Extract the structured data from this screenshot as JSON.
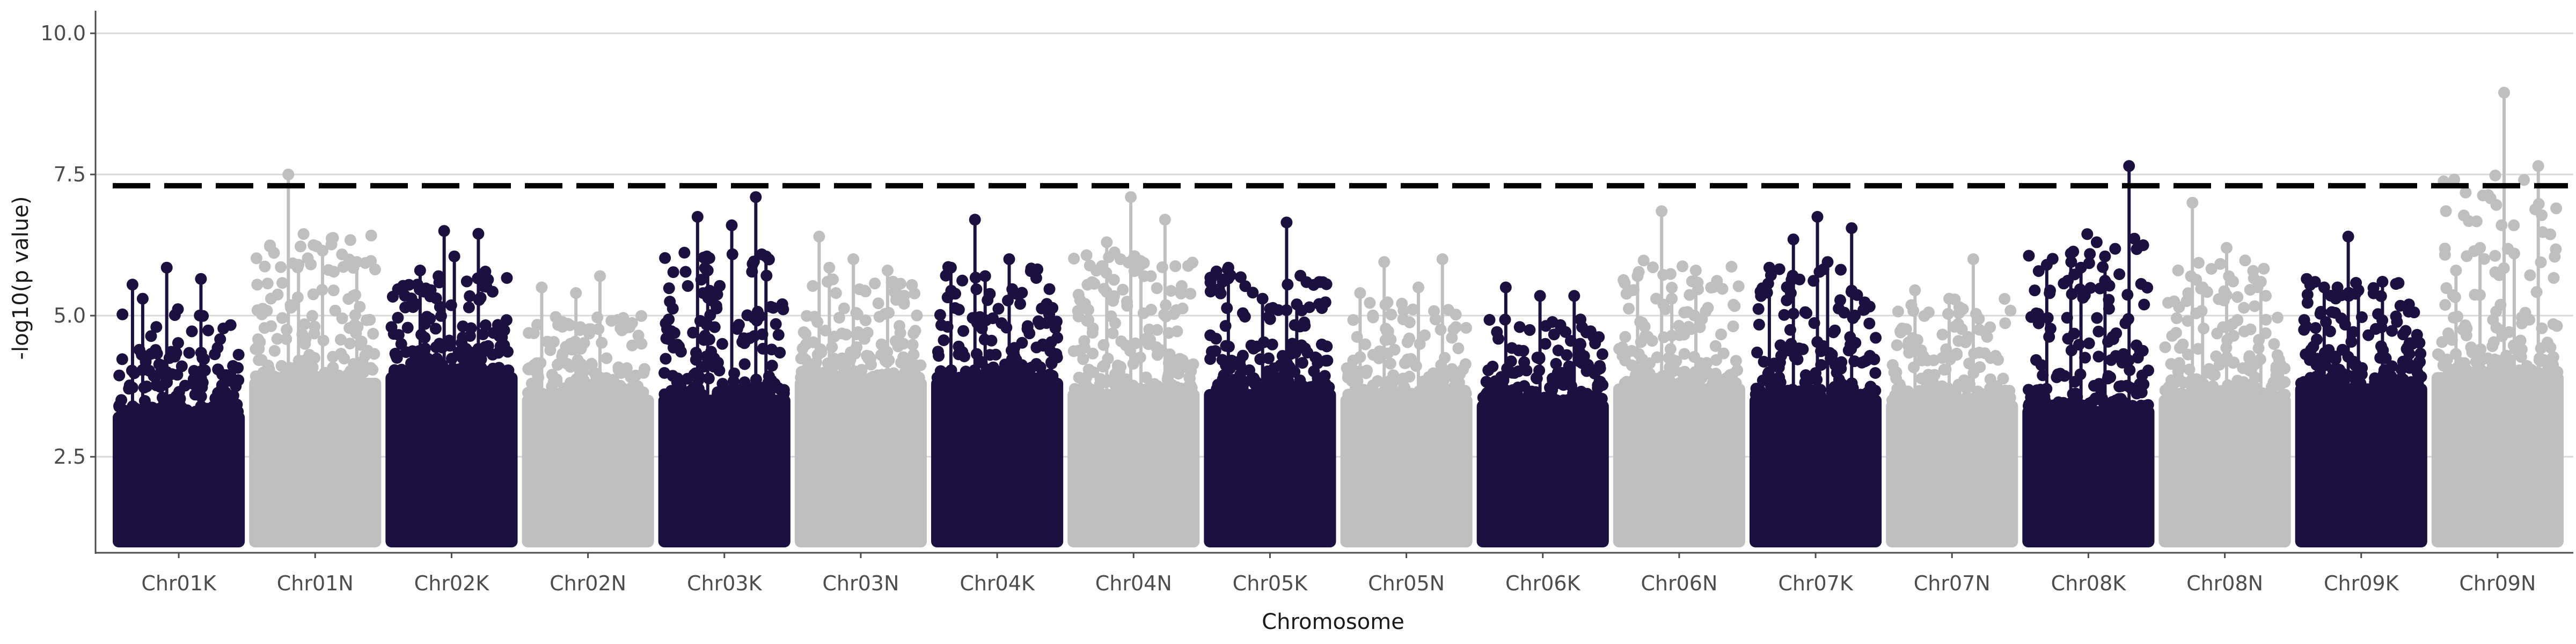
{
  "chart_data": {
    "type": "scatter",
    "subtype": "manhattan",
    "title": "",
    "xlabel": "Chromosome",
    "ylabel": "-log10(p value)",
    "ylim": [
      0.8,
      10.4
    ],
    "yticks": [
      2.5,
      5.0,
      7.5,
      10.0
    ],
    "ytick_labels": [
      "2.5",
      "5.0",
      "7.5",
      "10.0"
    ],
    "grid": "horizontal major lines only",
    "legend": "none",
    "threshold": {
      "value": 7.3,
      "style": "dashed"
    },
    "colors": {
      "dark": "#1c1040",
      "light": "#bfbfbf",
      "grid": "#d9d9d9",
      "threshold": "#000000"
    },
    "categories": [
      "Chr01K",
      "Chr01N",
      "Chr02K",
      "Chr02N",
      "Chr03K",
      "Chr03N",
      "Chr04K",
      "Chr04N",
      "Chr05K",
      "Chr05N",
      "Chr06K",
      "Chr06N",
      "Chr07K",
      "Chr07N",
      "Chr08K",
      "Chr08N",
      "Chr09K",
      "Chr09N"
    ],
    "chromosomes": [
      {
        "name": "Chr01K",
        "color": "dark",
        "band_top": 3.3,
        "max": 5.85,
        "notable": [
          5.55,
          5.85,
          5.65,
          5.3
        ]
      },
      {
        "name": "Chr01N",
        "color": "light",
        "band_top": 3.9,
        "max": 7.5,
        "notable": [
          7.5,
          6.15,
          5.95,
          5.9
        ]
      },
      {
        "name": "Chr02K",
        "color": "dark",
        "band_top": 4.0,
        "max": 6.5,
        "notable": [
          6.5,
          6.45,
          5.8,
          6.05
        ]
      },
      {
        "name": "Chr02N",
        "color": "light",
        "band_top": 3.6,
        "max": 5.7,
        "notable": [
          5.7,
          5.5,
          5.4
        ]
      },
      {
        "name": "Chr03K",
        "color": "dark",
        "band_top": 3.6,
        "max": 7.1,
        "notable": [
          7.1,
          6.75,
          6.6,
          6.05,
          5.8
        ]
      },
      {
        "name": "Chr03N",
        "color": "light",
        "band_top": 3.9,
        "max": 6.4,
        "notable": [
          6.4,
          6.0,
          5.8,
          5.85
        ]
      },
      {
        "name": "Chr04K",
        "color": "dark",
        "band_top": 3.9,
        "max": 6.7,
        "notable": [
          6.7,
          6.0,
          5.85,
          5.7
        ]
      },
      {
        "name": "Chr04N",
        "color": "light",
        "band_top": 3.7,
        "max": 7.1,
        "notable": [
          7.1,
          6.7,
          6.3,
          5.9
        ]
      },
      {
        "name": "Chr05K",
        "color": "dark",
        "band_top": 3.7,
        "max": 6.65,
        "notable": [
          6.65,
          5.85,
          5.3,
          5.2
        ]
      },
      {
        "name": "Chr05N",
        "color": "light",
        "band_top": 3.6,
        "max": 6.0,
        "notable": [
          6.0,
          5.95,
          5.5,
          5.4
        ]
      },
      {
        "name": "Chr06K",
        "color": "dark",
        "band_top": 3.5,
        "max": 5.5,
        "notable": [
          5.5,
          5.35,
          5.35
        ]
      },
      {
        "name": "Chr06N",
        "color": "light",
        "band_top": 3.8,
        "max": 6.85,
        "notable": [
          6.85,
          5.8,
          5.7,
          5.3
        ]
      },
      {
        "name": "Chr07K",
        "color": "dark",
        "band_top": 3.6,
        "max": 6.75,
        "notable": [
          6.75,
          6.55,
          6.35,
          5.95,
          5.85
        ]
      },
      {
        "name": "Chr07N",
        "color": "light",
        "band_top": 3.5,
        "max": 6.0,
        "notable": [
          6.0,
          5.45,
          5.3
        ]
      },
      {
        "name": "Chr08K",
        "color": "dark",
        "band_top": 3.4,
        "max": 7.65,
        "notable": [
          7.65,
          6.1,
          6.05,
          5.9,
          5.85
        ]
      },
      {
        "name": "Chr08N",
        "color": "light",
        "band_top": 3.6,
        "max": 7.0,
        "notable": [
          7.0,
          6.2,
          5.6,
          5.5
        ]
      },
      {
        "name": "Chr09K",
        "color": "dark",
        "band_top": 3.8,
        "max": 6.4,
        "notable": [
          6.4,
          5.6,
          5.5,
          5.45
        ]
      },
      {
        "name": "Chr09N",
        "color": "light",
        "band_top": 4.0,
        "max": 8.95,
        "notable": [
          8.95,
          7.65,
          6.2,
          6.1,
          5.8
        ]
      }
    ]
  }
}
